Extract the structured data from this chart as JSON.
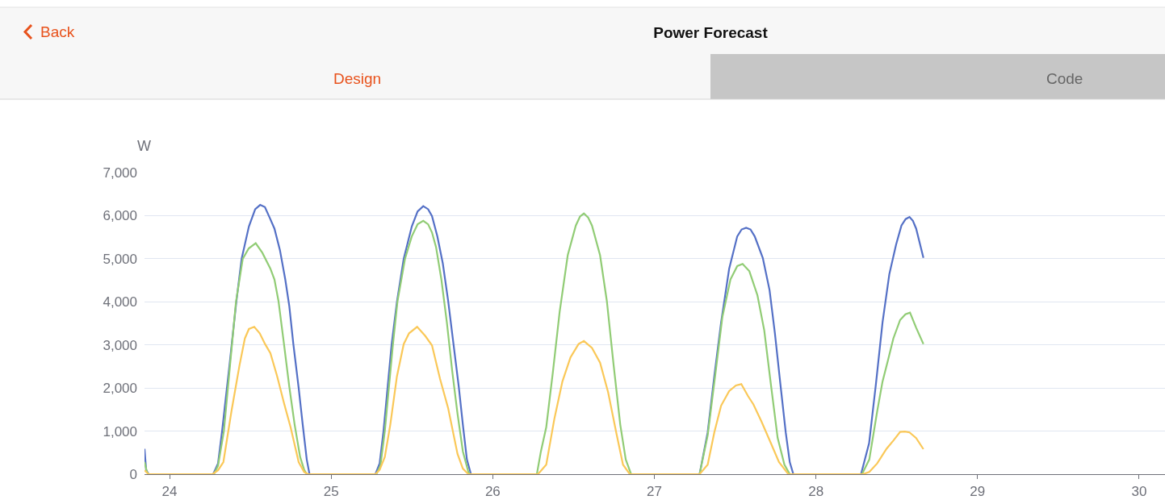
{
  "chart_data": {
    "type": "line",
    "title": "Power Forecast",
    "ylabel": "W",
    "annotations": [
      "Back",
      "Design",
      "Code"
    ],
    "xlim": [
      23.845,
      30.16
    ],
    "xticks": [
      24,
      25,
      26,
      27,
      28,
      29,
      30
    ],
    "ylim": [
      0,
      7000
    ],
    "yticks": [
      {
        "value": 0,
        "label": "0"
      },
      {
        "value": 1000,
        "label": "1,000"
      },
      {
        "value": 2000,
        "label": "2,000"
      },
      {
        "value": 3000,
        "label": "3,000"
      },
      {
        "value": 4000,
        "label": "4,000"
      },
      {
        "value": 5000,
        "label": "5,000"
      },
      {
        "value": 6000,
        "label": "6,000"
      },
      {
        "value": 7000,
        "label": "7,000"
      }
    ],
    "grid": "y",
    "marker": "none",
    "series": [
      {
        "color": "#5470c6",
        "x": [
          23.845,
          23.855,
          23.87,
          24.27,
          24.3,
          24.325,
          24.37,
          24.413,
          24.446,
          24.491,
          24.53,
          24.561,
          24.59,
          24.62,
          24.649,
          24.683,
          24.716,
          24.741,
          24.766,
          24.799,
          24.824,
          24.849,
          24.866,
          25.274,
          25.3,
          25.324,
          25.374,
          25.407,
          25.449,
          25.499,
          25.535,
          25.57,
          25.6,
          25.624,
          25.657,
          25.691,
          25.724,
          25.757,
          25.79,
          25.815,
          25.84,
          25.865,
          26.5,
          26.9,
          27.28,
          27.33,
          27.371,
          27.413,
          27.463,
          27.513,
          27.54,
          27.568,
          27.595,
          27.621,
          27.671,
          27.713,
          27.746,
          27.78,
          27.813,
          27.838,
          27.86,
          28.279,
          28.329,
          28.371,
          28.412,
          28.454,
          28.496,
          28.529,
          28.555,
          28.579,
          28.6,
          28.62,
          28.665
        ],
        "values": [
          590,
          100,
          0,
          0,
          250,
          1000,
          2500,
          4000,
          5000,
          5750,
          6150,
          6250,
          6200,
          5950,
          5700,
          5200,
          4520,
          3900,
          3020,
          2000,
          1150,
          340,
          0,
          0,
          250,
          1000,
          3000,
          4000,
          5000,
          5750,
          6100,
          6220,
          6150,
          5990,
          5520,
          4890,
          4020,
          3020,
          2020,
          1150,
          340,
          0,
          null,
          0,
          0,
          970,
          2270,
          3520,
          4770,
          5520,
          5680,
          5720,
          5680,
          5520,
          5020,
          4270,
          3270,
          2090,
          970,
          280,
          0,
          0,
          720,
          2090,
          3520,
          4640,
          5330,
          5770,
          5920,
          5970,
          5880,
          5700,
          5020
        ]
      },
      {
        "color": "#91cc75",
        "x": [
          23.845,
          23.86,
          23.87,
          24.275,
          24.3,
          24.336,
          24.386,
          24.411,
          24.453,
          24.49,
          24.533,
          24.574,
          24.624,
          24.649,
          24.674,
          24.708,
          24.741,
          24.774,
          24.808,
          24.833,
          24.849,
          25.28,
          25.305,
          25.332,
          25.382,
          25.41,
          25.457,
          25.499,
          25.535,
          25.57,
          25.6,
          25.624,
          25.649,
          25.682,
          25.716,
          25.749,
          25.782,
          25.815,
          25.849,
          25.86,
          26.273,
          26.298,
          26.331,
          26.373,
          26.414,
          26.464,
          26.514,
          26.54,
          26.564,
          26.59,
          26.614,
          26.664,
          26.706,
          26.748,
          26.789,
          26.823,
          26.856,
          27.28,
          27.33,
          27.38,
          27.421,
          27.471,
          27.513,
          27.546,
          27.588,
          27.638,
          27.68,
          27.721,
          27.763,
          27.805,
          27.838,
          28.285,
          28.33,
          28.379,
          28.412,
          28.446,
          28.479,
          28.521,
          28.554,
          28.582,
          28.62,
          28.665
        ],
        "values": [
          280,
          50,
          0,
          0,
          200,
          1000,
          3000,
          4000,
          5000,
          5240,
          5360,
          5140,
          4770,
          4520,
          4020,
          3020,
          2030,
          1150,
          400,
          100,
          0,
          0,
          200,
          1000,
          3000,
          4000,
          5000,
          5520,
          5800,
          5880,
          5800,
          5610,
          5270,
          4520,
          3520,
          2400,
          1400,
          530,
          50,
          0,
          0,
          530,
          1090,
          2400,
          3770,
          5080,
          5770,
          5980,
          6050,
          5960,
          5770,
          5080,
          4020,
          2530,
          1150,
          340,
          0,
          0,
          900,
          2400,
          3650,
          4520,
          4830,
          4880,
          4710,
          4150,
          3340,
          2090,
          840,
          220,
          0,
          0,
          340,
          1460,
          2150,
          2650,
          3150,
          3580,
          3710,
          3750,
          3400,
          3020
        ]
      },
      {
        "color": "#fac858",
        "x": [
          23.845,
          23.87,
          24.266,
          24.3,
          24.333,
          24.383,
          24.433,
          24.466,
          24.491,
          24.524,
          24.558,
          24.591,
          24.624,
          24.666,
          24.708,
          24.749,
          24.799,
          24.833,
          24.857,
          25.274,
          25.3,
          25.332,
          25.366,
          25.407,
          25.449,
          25.482,
          25.532,
          25.582,
          25.624,
          25.674,
          25.724,
          25.782,
          25.815,
          25.849,
          26.28,
          26.331,
          26.381,
          26.431,
          26.481,
          26.531,
          26.564,
          26.614,
          26.664,
          26.714,
          26.764,
          26.806,
          26.848,
          27.28,
          27.33,
          27.371,
          27.413,
          27.463,
          27.505,
          27.538,
          27.58,
          27.613,
          27.663,
          27.721,
          27.771,
          27.829,
          28.29,
          28.33,
          28.379,
          28.437,
          28.479,
          28.521,
          28.55,
          28.579,
          28.62,
          28.665
        ],
        "values": [
          90,
          0,
          0,
          90,
          280,
          1460,
          2530,
          3150,
          3370,
          3420,
          3270,
          3020,
          2810,
          2270,
          1650,
          1090,
          280,
          50,
          0,
          0,
          100,
          400,
          1150,
          2270,
          3020,
          3270,
          3420,
          3210,
          2990,
          2210,
          1530,
          470,
          130,
          0,
          0,
          220,
          1280,
          2150,
          2710,
          3020,
          3090,
          2930,
          2590,
          1900,
          970,
          220,
          0,
          0,
          220,
          970,
          1590,
          1930,
          2060,
          2090,
          1810,
          1620,
          1220,
          720,
          280,
          0,
          0,
          50,
          250,
          590,
          780,
          980,
          990,
          970,
          840,
          580
        ]
      }
    ]
  }
}
